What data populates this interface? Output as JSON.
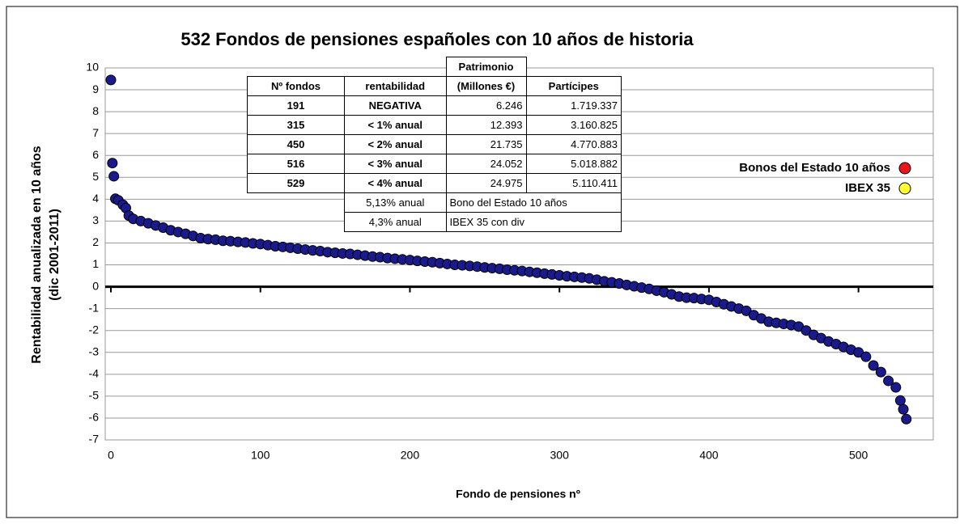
{
  "chart_data": {
    "type": "scatter",
    "title": "532 Fondos de pensiones españoles con 10 años de historia",
    "xlabel": "Fondo de pensiones nº",
    "ylabel": [
      "Rentabilidad anualizada en 10 años",
      "(dic 2001-2011)"
    ],
    "xlim": [
      0,
      550
    ],
    "xticks": [
      0,
      100,
      200,
      300,
      400,
      500
    ],
    "ylim": [
      -7,
      10
    ],
    "yticks": [
      -7,
      -6,
      -5,
      -4,
      -3,
      -2,
      -1,
      0,
      1,
      2,
      3,
      4,
      5,
      6,
      7,
      8,
      9,
      10
    ],
    "grid": true,
    "color": "#1a1a8c",
    "x": [
      0,
      1,
      2,
      3,
      5,
      8,
      10,
      12,
      15,
      20,
      25,
      30,
      35,
      40,
      45,
      50,
      55,
      60,
      65,
      70,
      75,
      80,
      85,
      90,
      95,
      100,
      105,
      110,
      115,
      120,
      125,
      130,
      135,
      140,
      145,
      150,
      155,
      160,
      165,
      170,
      175,
      180,
      185,
      190,
      195,
      200,
      205,
      210,
      215,
      220,
      225,
      230,
      235,
      240,
      245,
      250,
      255,
      260,
      265,
      270,
      275,
      280,
      285,
      290,
      295,
      300,
      305,
      310,
      315,
      320,
      325,
      330,
      335,
      340,
      345,
      350,
      355,
      360,
      365,
      370,
      375,
      380,
      385,
      390,
      395,
      400,
      405,
      410,
      415,
      420,
      425,
      430,
      435,
      440,
      445,
      450,
      455,
      460,
      465,
      470,
      475,
      480,
      485,
      490,
      495,
      500,
      505,
      510,
      515,
      520,
      525,
      528,
      530,
      532
    ],
    "values": [
      9.45,
      5.65,
      5.05,
      4.02,
      3.95,
      3.75,
      3.6,
      3.25,
      3.1,
      3.0,
      2.9,
      2.8,
      2.7,
      2.58,
      2.5,
      2.42,
      2.32,
      2.22,
      2.18,
      2.15,
      2.1,
      2.08,
      2.05,
      2.02,
      1.98,
      1.95,
      1.9,
      1.85,
      1.82,
      1.78,
      1.74,
      1.7,
      1.66,
      1.63,
      1.58,
      1.55,
      1.52,
      1.5,
      1.46,
      1.42,
      1.38,
      1.35,
      1.31,
      1.28,
      1.25,
      1.22,
      1.18,
      1.15,
      1.12,
      1.08,
      1.04,
      1.0,
      0.98,
      0.95,
      0.92,
      0.88,
      0.85,
      0.82,
      0.78,
      0.75,
      0.72,
      0.68,
      0.64,
      0.6,
      0.56,
      0.52,
      0.48,
      0.45,
      0.42,
      0.38,
      0.32,
      0.25,
      0.2,
      0.15,
      0.08,
      0.02,
      -0.04,
      -0.1,
      -0.18,
      -0.25,
      -0.35,
      -0.45,
      -0.5,
      -0.52,
      -0.56,
      -0.6,
      -0.7,
      -0.8,
      -0.9,
      -1.0,
      -1.1,
      -1.3,
      -1.45,
      -1.6,
      -1.65,
      -1.7,
      -1.75,
      -1.82,
      -2.0,
      -2.2,
      -2.35,
      -2.5,
      -2.62,
      -2.75,
      -2.88,
      -3.0,
      -3.2,
      -3.6,
      -3.9,
      -4.3,
      -4.6,
      -5.2,
      -5.6,
      -6.05
    ],
    "legend": [
      {
        "name": "Bonos del Estado 10 años",
        "color": "#e8191c"
      },
      {
        "name": "IBEX 35",
        "color": "#ffff33"
      }
    ]
  },
  "table": {
    "header_top": "Patrimonio",
    "header": [
      "Nº fondos",
      "rentabilidad",
      "(Millones €)",
      "Partícipes"
    ],
    "rows": [
      [
        "191",
        "NEGATIVA",
        "6.246",
        "1.719.337"
      ],
      [
        "315",
        "< 1% anual",
        "12.393",
        "3.160.825"
      ],
      [
        "450",
        "< 2% anual",
        "21.735",
        "4.770.883"
      ],
      [
        "516",
        "< 3% anual",
        "24.052",
        "5.018.882"
      ],
      [
        "529",
        "< 4% anual",
        "24.975",
        "5.110.411"
      ]
    ],
    "notes": [
      [
        "5,13% anual",
        "Bono del Estado 10 años"
      ],
      [
        "4,3% anual",
        "IBEX 35 con div"
      ]
    ]
  }
}
